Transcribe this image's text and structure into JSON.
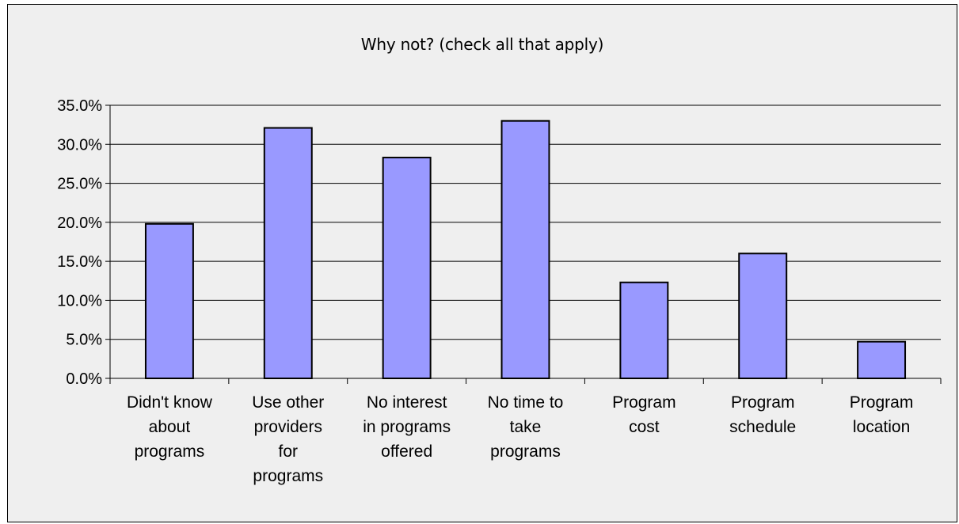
{
  "chart_data": {
    "type": "bar",
    "title": "Why not? (check all that apply)",
    "xlabel": "",
    "ylabel": "",
    "categories": [
      "Didn't know about programs",
      "Use other providers for programs",
      "No interest in programs offered",
      "No time to take programs",
      "Program cost",
      "Program schedule",
      "Program location"
    ],
    "category_lines": [
      [
        "Didn't know",
        "about",
        "programs"
      ],
      [
        "Use other",
        "providers",
        "for",
        "programs"
      ],
      [
        "No interest",
        "in programs",
        "offered"
      ],
      [
        "No time to",
        "take",
        "programs"
      ],
      [
        "Program",
        "cost"
      ],
      [
        "Program",
        "schedule"
      ],
      [
        "Program",
        "location"
      ]
    ],
    "values": [
      19.8,
      32.1,
      28.3,
      33.0,
      12.3,
      16.0,
      4.7
    ],
    "ylim": [
      0,
      35
    ],
    "yticks": [
      0,
      5,
      10,
      15,
      20,
      25,
      30,
      35
    ],
    "ytick_labels": [
      "0.0%",
      "5.0%",
      "10.0%",
      "15.0%",
      "20.0%",
      "25.0%",
      "30.0%",
      "35.0%"
    ],
    "grid": true,
    "legend": "none",
    "colors": {
      "bar_fill": "#9999ff",
      "bar_stroke": "#000000",
      "plot_background": "#efefef",
      "gridline": "#000000",
      "text": "#000000"
    }
  }
}
